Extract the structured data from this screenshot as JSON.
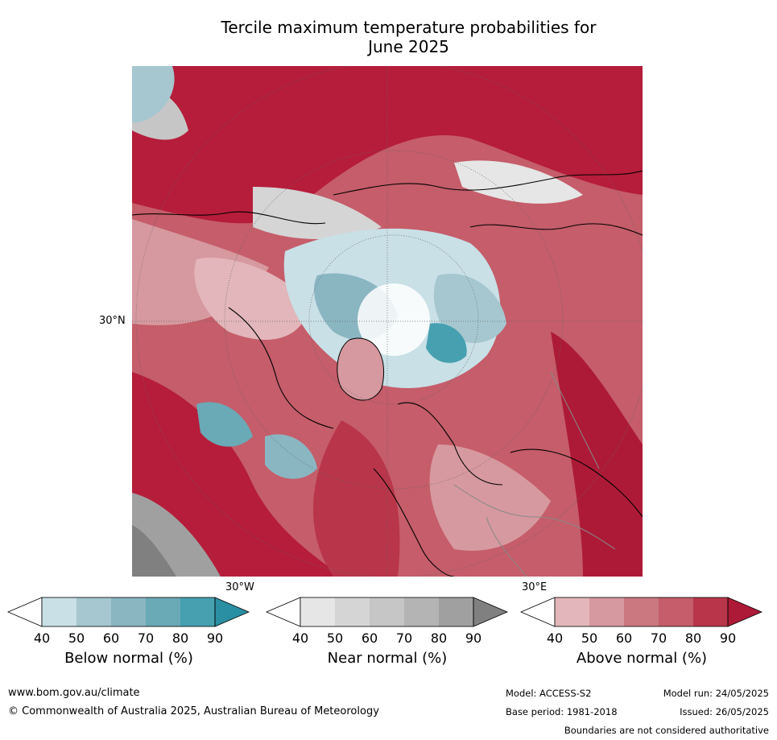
{
  "title_line1": "Tercile maximum temperature probabilities for",
  "title_line2": "June 2025",
  "map": {
    "lat_label": "30°N",
    "lon_label_left": "30°W",
    "lon_label_right": "30°E"
  },
  "colorbars": [
    {
      "label": "Below normal (%)",
      "ticks": [
        "40",
        "50",
        "60",
        "70",
        "80",
        "90"
      ],
      "colors": [
        "#ffffff",
        "#c8e0e6",
        "#a6c7cf",
        "#8ab6c2",
        "#6aa9b6",
        "#46a0b0",
        "#2b8fa3"
      ]
    },
    {
      "label": "Near normal (%)",
      "ticks": [
        "40",
        "50",
        "60",
        "70",
        "80",
        "90"
      ],
      "colors": [
        "#ffffff",
        "#e6e6e6",
        "#d5d5d5",
        "#c6c6c6",
        "#b4b4b4",
        "#a0a0a0",
        "#808080"
      ]
    },
    {
      "label": "Above normal (%)",
      "ticks": [
        "40",
        "50",
        "60",
        "70",
        "80",
        "90"
      ],
      "colors": [
        "#ffffff",
        "#e2b6ba",
        "#d6999f",
        "#cb7880",
        "#c55d6a",
        "#b93549",
        "#ad1a37"
      ]
    }
  ],
  "footer": {
    "website": "www.bom.gov.au/climate",
    "copyright": "© Commonwealth of Australia 2025, Australian Bureau of Meteorology",
    "model": "Model: ACCESS-S2",
    "base_period": "Base period: 1981-2018",
    "model_run": "Model run: 24/05/2025",
    "issued": "Issued: 26/05/2025",
    "disclaimer": "Boundaries are not considered authoritative"
  }
}
